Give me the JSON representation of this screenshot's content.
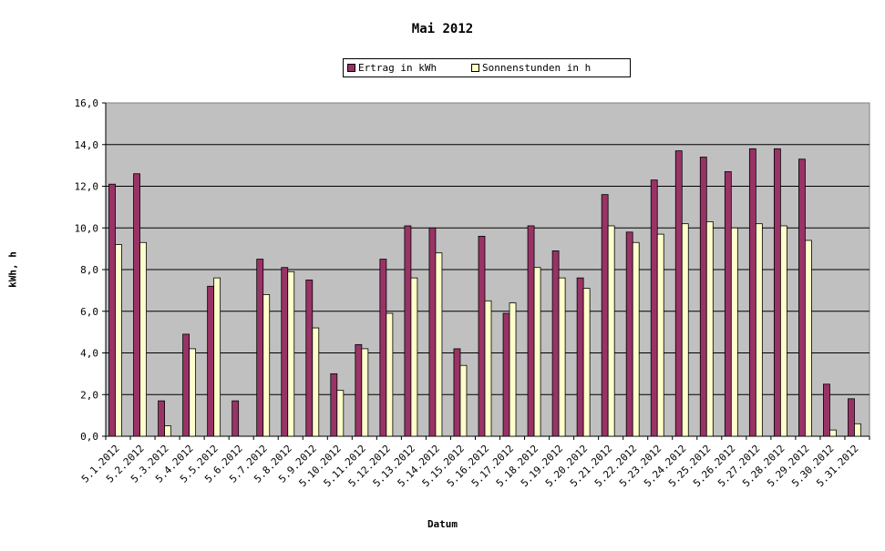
{
  "chart_data": {
    "type": "bar",
    "title": "Mai 2012",
    "xlabel": "Datum",
    "ylabel": "kWh, h",
    "ylim": [
      0,
      16
    ],
    "yticks": [
      "0,0",
      "2,0",
      "4,0",
      "6,0",
      "8,0",
      "10,0",
      "12,0",
      "14,0",
      "16,0"
    ],
    "grid": true,
    "legend_position": "top",
    "categories": [
      "5.1.2012",
      "5.2.2012",
      "5.3.2012",
      "5.4.2012",
      "5.5.2012",
      "5.6.2012",
      "5.7.2012",
      "5.8.2012",
      "5.9.2012",
      "5.10.2012",
      "5.11.2012",
      "5.12.2012",
      "5.13.2012",
      "5.14.2012",
      "5.15.2012",
      "5.16.2012",
      "5.17.2012",
      "5.18.2012",
      "5.19.2012",
      "5.20.2012",
      "5.21.2012",
      "5.22.2012",
      "5.23.2012",
      "5.24.2012",
      "5.25.2012",
      "5.26.2012",
      "5.27.2012",
      "5.28.2012",
      "5.29.2012",
      "5.30.2012",
      "5.31.2012"
    ],
    "series": [
      {
        "name": "Ertrag in kWh",
        "color": "#993366",
        "values": [
          12.1,
          12.6,
          1.7,
          4.9,
          7.2,
          1.7,
          8.5,
          8.1,
          7.5,
          3.0,
          4.4,
          8.5,
          10.1,
          10.0,
          4.2,
          9.6,
          5.9,
          10.1,
          8.9,
          7.6,
          11.6,
          9.8,
          12.3,
          13.7,
          13.4,
          12.7,
          13.8,
          13.8,
          13.3,
          2.5,
          1.8
        ]
      },
      {
        "name": "Sonnenstunden in h",
        "color": "#ffffcc",
        "values": [
          9.2,
          9.3,
          0.5,
          4.2,
          7.6,
          0.0,
          6.8,
          7.9,
          5.2,
          2.2,
          4.2,
          5.9,
          7.6,
          8.8,
          3.4,
          6.5,
          6.4,
          8.1,
          7.6,
          7.1,
          10.1,
          9.3,
          9.7,
          10.2,
          10.3,
          10.0,
          10.2,
          10.1,
          9.4,
          0.3,
          0.6
        ]
      }
    ],
    "plot_background": "#c0c0c0"
  }
}
